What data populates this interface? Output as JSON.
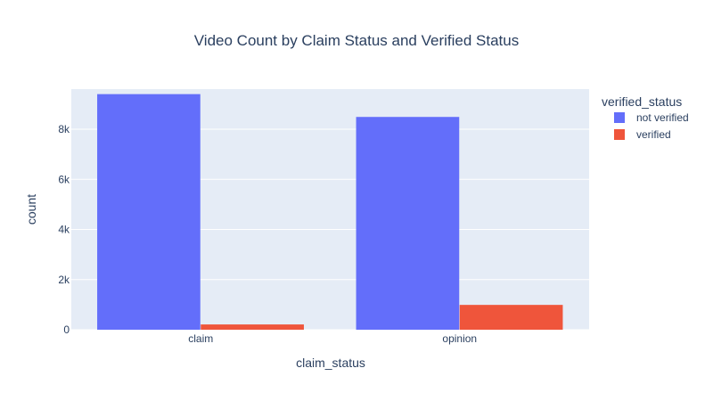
{
  "chart_data": {
    "type": "bar",
    "title": "Video Count by Claim Status and Verified Status",
    "xlabel": "claim_status",
    "ylabel": "count",
    "categories": [
      "claim",
      "opinion"
    ],
    "series": [
      {
        "name": "not verified",
        "values": [
          9400,
          8490
        ],
        "color": "#636efa"
      },
      {
        "name": "verified",
        "values": [
          210,
          990
        ],
        "color": "#ef553b"
      }
    ],
    "ylim": [
      0,
      9600
    ],
    "yticks": [
      0,
      2000,
      4000,
      6000,
      8000
    ],
    "ytick_labels": [
      "0",
      "2k",
      "4k",
      "6k",
      "8k"
    ],
    "grid": true,
    "legend": {
      "title": "verified_status",
      "position": "right"
    },
    "plot_background": "#e5ecf6"
  }
}
